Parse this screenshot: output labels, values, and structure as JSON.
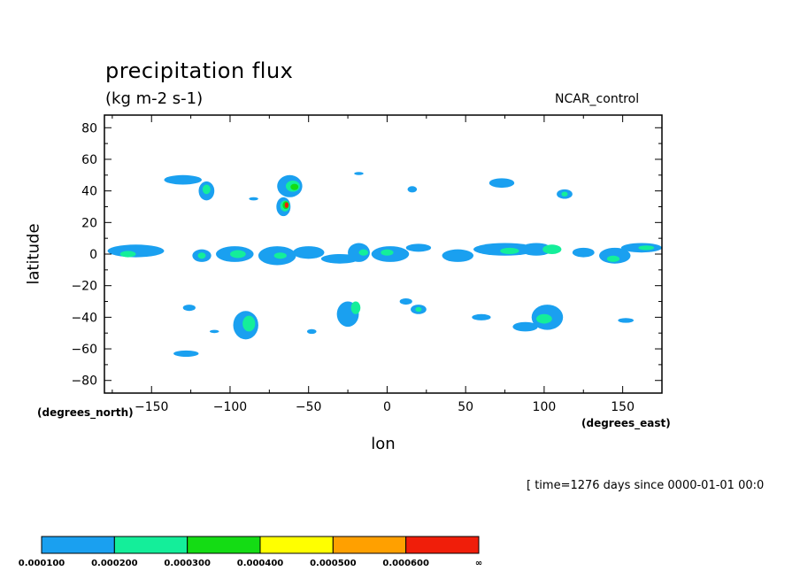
{
  "title": "precipitation flux",
  "units": "(kg m-2 s-1)",
  "dataset": "NCAR_control",
  "time_info": "[ time=1276 days since 0000-01-01 00:0",
  "chart_data": {
    "type": "contour",
    "xlabel": "lon",
    "ylabel": "latitude",
    "x_units_label": "(degrees_east)",
    "y_units_label": "(degrees_north)",
    "xlim": [
      -180,
      175
    ],
    "ylim": [
      -88,
      88
    ],
    "x_ticks": [
      -150,
      -100,
      -50,
      0,
      50,
      100,
      150
    ],
    "y_ticks": [
      80,
      60,
      40,
      20,
      0,
      -20,
      -40,
      -60,
      -80
    ],
    "x_tick_labels": [
      "−150",
      "−100",
      "−50",
      "0",
      "50",
      "100",
      "150"
    ],
    "y_tick_labels": [
      "80",
      "60",
      "40",
      "20",
      "0",
      "−20",
      "−40",
      "−60",
      "−80"
    ],
    "colorbar": {
      "levels": [
        "0.000100",
        "0.000200",
        "0.000300",
        "0.000400",
        "0.000500",
        "0.000600",
        "∞"
      ],
      "colors": [
        "#1aa0f0",
        "#14ee9a",
        "#14dc14",
        "#ffff00",
        "#ffa000",
        "#f01e0a"
      ]
    },
    "regions": [
      {
        "lon": -130,
        "lat": 47,
        "rlon": 12,
        "rlat": 3,
        "level": 0
      },
      {
        "lon": -115,
        "lat": 40,
        "rlon": 5,
        "rlat": 6,
        "level": 0
      },
      {
        "lon": -115,
        "lat": 41,
        "rlon": 2.5,
        "rlat": 3,
        "level": 1
      },
      {
        "lon": -62,
        "lat": 43,
        "rlon": 8,
        "rlat": 7,
        "level": 0
      },
      {
        "lon": -60,
        "lat": 43,
        "rlon": 4.5,
        "rlat": 3.5,
        "level": 1
      },
      {
        "lon": -59,
        "lat": 42.5,
        "rlon": 2.5,
        "rlat": 2,
        "level": 2
      },
      {
        "lon": -66,
        "lat": 30,
        "rlon": 4.5,
        "rlat": 6,
        "level": 0
      },
      {
        "lon": -65,
        "lat": 30.5,
        "rlon": 3,
        "rlat": 3.5,
        "level": 1
      },
      {
        "lon": -64.5,
        "lat": 31,
        "rlon": 2,
        "rlat": 2.5,
        "level": 2
      },
      {
        "lon": -64,
        "lat": 31,
        "rlon": 1.2,
        "rlat": 1.8,
        "level": 5
      },
      {
        "lon": -18,
        "lat": 51,
        "rlon": 3,
        "rlat": 1,
        "level": 0
      },
      {
        "lon": 16,
        "lat": 41,
        "rlon": 3,
        "rlat": 2,
        "level": 0
      },
      {
        "lon": 73,
        "lat": 45,
        "rlon": 8,
        "rlat": 3,
        "level": 0
      },
      {
        "lon": 113,
        "lat": 38,
        "rlon": 5,
        "rlat": 3,
        "level": 0
      },
      {
        "lon": 113,
        "lat": 38,
        "rlon": 2,
        "rlat": 1.5,
        "level": 1
      },
      {
        "lon": -85,
        "lat": 35,
        "rlon": 3,
        "rlat": 1,
        "level": 0
      },
      {
        "lon": -160,
        "lat": 2,
        "rlon": 18,
        "rlat": 4,
        "level": 0
      },
      {
        "lon": -165,
        "lat": 0,
        "rlon": 5,
        "rlat": 2,
        "level": 1
      },
      {
        "lon": -118,
        "lat": -1,
        "rlon": 6,
        "rlat": 4,
        "level": 0
      },
      {
        "lon": -118,
        "lat": -1,
        "rlon": 2.5,
        "rlat": 2,
        "level": 1
      },
      {
        "lon": -97,
        "lat": 0,
        "rlon": 12,
        "rlat": 5,
        "level": 0
      },
      {
        "lon": -95,
        "lat": 0,
        "rlon": 5,
        "rlat": 2.5,
        "level": 1
      },
      {
        "lon": -70,
        "lat": -1,
        "rlon": 12,
        "rlat": 6,
        "level": 0
      },
      {
        "lon": -68,
        "lat": -1,
        "rlon": 4,
        "rlat": 2,
        "level": 1
      },
      {
        "lon": -50,
        "lat": 1,
        "rlon": 10,
        "rlat": 4,
        "level": 0
      },
      {
        "lon": -30,
        "lat": -3,
        "rlon": 12,
        "rlat": 3,
        "level": 0
      },
      {
        "lon": -18,
        "lat": 1,
        "rlon": 7,
        "rlat": 6,
        "level": 0
      },
      {
        "lon": -15,
        "lat": 1,
        "rlon": 3,
        "rlat": 2,
        "level": 1
      },
      {
        "lon": 2,
        "lat": 0,
        "rlon": 12,
        "rlat": 5,
        "level": 0
      },
      {
        "lon": 0,
        "lat": 1,
        "rlon": 4,
        "rlat": 2,
        "level": 1
      },
      {
        "lon": 20,
        "lat": 4,
        "rlon": 8,
        "rlat": 2.5,
        "level": 0
      },
      {
        "lon": 45,
        "lat": -1,
        "rlon": 10,
        "rlat": 4,
        "level": 0
      },
      {
        "lon": 75,
        "lat": 3,
        "rlon": 20,
        "rlat": 4,
        "level": 0
      },
      {
        "lon": 78,
        "lat": 2,
        "rlon": 6,
        "rlat": 2,
        "level": 1
      },
      {
        "lon": 95,
        "lat": 3,
        "rlon": 10,
        "rlat": 4,
        "level": 0
      },
      {
        "lon": 105,
        "lat": 3,
        "rlon": 6,
        "rlat": 3,
        "level": 1
      },
      {
        "lon": 125,
        "lat": 1,
        "rlon": 7,
        "rlat": 3,
        "level": 0
      },
      {
        "lon": 145,
        "lat": -1,
        "rlon": 10,
        "rlat": 5,
        "level": 0
      },
      {
        "lon": 144,
        "lat": -3,
        "rlon": 4,
        "rlat": 2,
        "level": 1
      },
      {
        "lon": 162,
        "lat": 4,
        "rlon": 13,
        "rlat": 3,
        "level": 0
      },
      {
        "lon": 165,
        "lat": 4,
        "rlon": 5,
        "rlat": 1.5,
        "level": 1
      },
      {
        "lon": -126,
        "lat": -34,
        "rlon": 4,
        "rlat": 2,
        "level": 0
      },
      {
        "lon": -128,
        "lat": -63,
        "rlon": 8,
        "rlat": 2,
        "level": 0
      },
      {
        "lon": -110,
        "lat": -49,
        "rlon": 3,
        "rlat": 1,
        "level": 0
      },
      {
        "lon": -90,
        "lat": -45,
        "rlon": 8,
        "rlat": 9,
        "level": 0
      },
      {
        "lon": -88,
        "lat": -44,
        "rlon": 4,
        "rlat": 5,
        "level": 1
      },
      {
        "lon": -48,
        "lat": -49,
        "rlon": 3,
        "rlat": 1.5,
        "level": 0
      },
      {
        "lon": -25,
        "lat": -38,
        "rlon": 7,
        "rlat": 8,
        "level": 0
      },
      {
        "lon": -20,
        "lat": -34,
        "rlon": 3,
        "rlat": 4,
        "level": 1
      },
      {
        "lon": 12,
        "lat": -30,
        "rlon": 4,
        "rlat": 2,
        "level": 0
      },
      {
        "lon": 20,
        "lat": -35,
        "rlon": 5,
        "rlat": 3,
        "level": 0
      },
      {
        "lon": 20,
        "lat": -35,
        "rlon": 2,
        "rlat": 1.5,
        "level": 1
      },
      {
        "lon": 60,
        "lat": -40,
        "rlon": 6,
        "rlat": 2,
        "level": 0
      },
      {
        "lon": 102,
        "lat": -40,
        "rlon": 10,
        "rlat": 8,
        "level": 0
      },
      {
        "lon": 100,
        "lat": -41,
        "rlon": 5,
        "rlat": 3,
        "level": 1
      },
      {
        "lon": 88,
        "lat": -46,
        "rlon": 8,
        "rlat": 3,
        "level": 0
      },
      {
        "lon": 152,
        "lat": -42,
        "rlon": 5,
        "rlat": 1.5,
        "level": 0
      }
    ]
  }
}
